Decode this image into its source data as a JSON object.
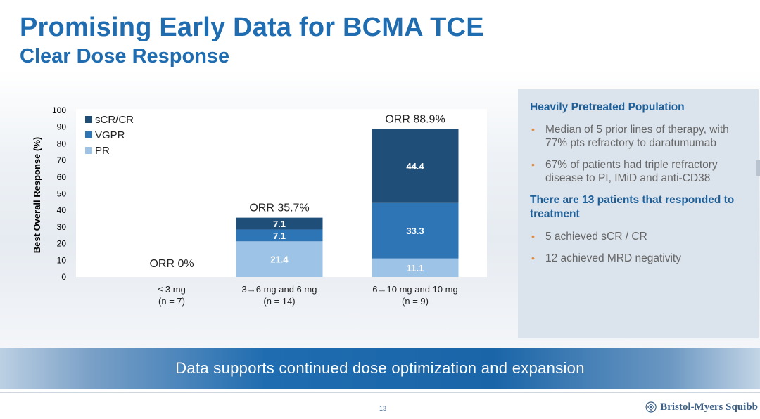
{
  "header": {
    "title": "Promising Early Data for BCMA TCE",
    "subtitle": "Clear Dose Response"
  },
  "chart_data": {
    "type": "bar",
    "stacked": true,
    "ylabel": "Best Overall Response (%)",
    "xlabel": "",
    "ylim": [
      0,
      100
    ],
    "yticks": [
      0,
      10,
      20,
      30,
      40,
      50,
      60,
      70,
      80,
      90,
      100
    ],
    "legend_position": "top-left",
    "categories": [
      {
        "label": "≤ 3 mg",
        "n": "(n = 7)"
      },
      {
        "label": "3→6 mg and 6 mg",
        "n": "(n = 14)"
      },
      {
        "label": "6→10 mg and 10 mg",
        "n": "(n = 9)"
      }
    ],
    "orr_labels": [
      "ORR 0%",
      "ORR 35.7%",
      "ORR 88.9%"
    ],
    "orr_values": [
      0,
      35.7,
      88.9
    ],
    "series": [
      {
        "name": "PR",
        "color": "#9dc3e6",
        "values": [
          0,
          21.4,
          11.1
        ],
        "labels": [
          "",
          "21.4",
          "11.1"
        ]
      },
      {
        "name": "VGPR",
        "color": "#2e75b6",
        "values": [
          0,
          7.1,
          33.3
        ],
        "labels": [
          "",
          "7.1",
          "33.3"
        ]
      },
      {
        "name": "sCR/CR",
        "color": "#1f4e79",
        "values": [
          0,
          7.1,
          44.4
        ],
        "labels": [
          "",
          "7.1",
          "44.4"
        ]
      }
    ],
    "legend_order": [
      "sCR/CR",
      "VGPR",
      "PR"
    ]
  },
  "panel": {
    "heading1": "Heavily Pretreated Population",
    "bullets1": [
      "Median of 5 prior lines of therapy, with 77% pts refractory to daratumumab",
      "67% of patients had triple refractory disease to PI, IMiD and anti-CD38"
    ],
    "heading2": "There are 13 patients that responded to treatment",
    "bullets2": [
      "5 achieved sCR / CR",
      "12 achieved MRD negativity"
    ],
    "bullet_glyph": "•"
  },
  "banner": {
    "text": "Data supports continued dose optimization and expansion"
  },
  "footer": {
    "page_number": "13",
    "logo_text": "Bristol-Myers Squibb"
  }
}
